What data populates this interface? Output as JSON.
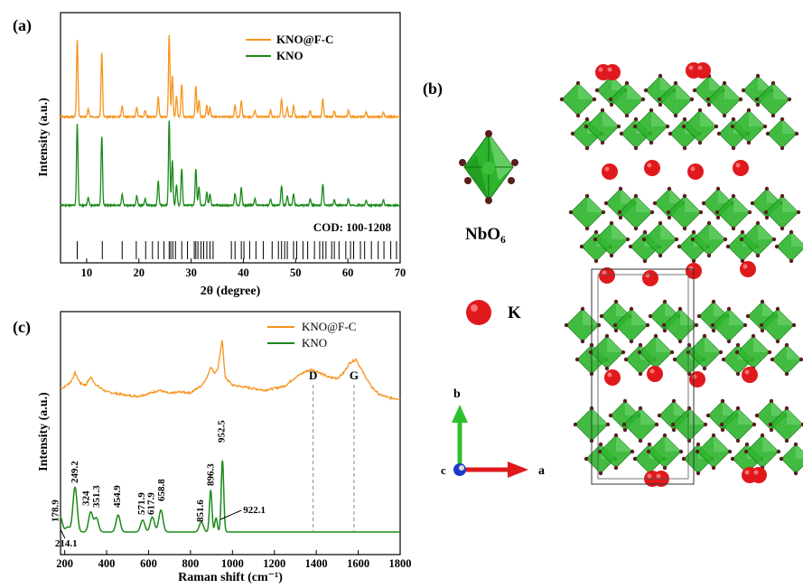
{
  "panel_labels": {
    "a": "(a)",
    "b": "(b)",
    "c": "(c)"
  },
  "colors": {
    "kno_f_c": "#f7941d",
    "kno": "#1a8a1a",
    "sticks": "#000000",
    "nb_green": "#2db52d",
    "oxygen": "#5a1e1e",
    "potassium": "#e0191d"
  },
  "chart_data": [
    {
      "type": "line",
      "panel": "(a)",
      "xlabel": "2θ (degree)",
      "ylabel": "Intensity (a.u.)",
      "xlim": [
        5,
        70
      ],
      "xticks": [
        10,
        20,
        30,
        40,
        50,
        60,
        70
      ],
      "legend_position": "top-right",
      "series": [
        {
          "name": "KNO@F-C",
          "color": "#f7941d",
          "peaks": [
            [
              8.2,
              0.95
            ],
            [
              10.3,
              0.1
            ],
            [
              12.9,
              0.78
            ],
            [
              16.8,
              0.14
            ],
            [
              19.6,
              0.12
            ],
            [
              21.2,
              0.08
            ],
            [
              23.7,
              0.25
            ],
            [
              25.8,
              1.0
            ],
            [
              26.4,
              0.5
            ],
            [
              27.2,
              0.25
            ],
            [
              28.2,
              0.4
            ],
            [
              30.9,
              0.38
            ],
            [
              31.5,
              0.2
            ],
            [
              33.0,
              0.14
            ],
            [
              33.6,
              0.12
            ],
            [
              38.4,
              0.14
            ],
            [
              39.6,
              0.2
            ],
            [
              42.2,
              0.08
            ],
            [
              45.2,
              0.08
            ],
            [
              47.3,
              0.22
            ],
            [
              48.4,
              0.12
            ],
            [
              49.6,
              0.14
            ],
            [
              52.8,
              0.08
            ],
            [
              55.2,
              0.22
            ],
            [
              57.4,
              0.07
            ],
            [
              60.1,
              0.08
            ],
            [
              63.5,
              0.06
            ],
            [
              66.8,
              0.06
            ]
          ]
        },
        {
          "name": "KNO",
          "color": "#1a8a1a",
          "peaks": [
            [
              8.2,
              1.0
            ],
            [
              10.3,
              0.1
            ],
            [
              12.9,
              0.85
            ],
            [
              16.8,
              0.14
            ],
            [
              19.6,
              0.12
            ],
            [
              21.2,
              0.08
            ],
            [
              23.7,
              0.3
            ],
            [
              25.8,
              1.05
            ],
            [
              26.4,
              0.55
            ],
            [
              27.2,
              0.25
            ],
            [
              28.2,
              0.45
            ],
            [
              30.9,
              0.45
            ],
            [
              31.5,
              0.22
            ],
            [
              33.0,
              0.16
            ],
            [
              33.6,
              0.14
            ],
            [
              38.4,
              0.14
            ],
            [
              39.6,
              0.22
            ],
            [
              42.2,
              0.08
            ],
            [
              45.2,
              0.08
            ],
            [
              47.3,
              0.24
            ],
            [
              48.4,
              0.12
            ],
            [
              49.6,
              0.14
            ],
            [
              52.8,
              0.08
            ],
            [
              55.2,
              0.26
            ],
            [
              57.4,
              0.07
            ],
            [
              60.1,
              0.08
            ],
            [
              63.5,
              0.06
            ],
            [
              66.8,
              0.06
            ]
          ]
        }
      ],
      "reference": {
        "label": "COD: 100-1208",
        "positions": [
          8.2,
          13.0,
          16.8,
          19.5,
          21.3,
          22.6,
          23.7,
          24.8,
          25.8,
          26.1,
          26.5,
          27.0,
          28.2,
          29.3,
          30.6,
          30.9,
          31.3,
          31.9,
          32.4,
          33.0,
          33.6,
          34.2,
          37.7,
          38.4,
          39.6,
          40.1,
          41.2,
          42.4,
          43.8,
          45.5,
          46.7,
          47.3,
          47.9,
          48.4,
          49.6,
          50.2,
          51.4,
          52.3,
          53.6,
          54.6,
          55.2,
          55.8,
          56.9,
          57.4,
          58.3,
          59.6,
          60.5,
          61.1,
          62.4,
          63.2,
          64.5,
          65.8,
          66.9,
          68.2,
          69.3
        ]
      }
    },
    {
      "type": "line",
      "panel": "(c)",
      "xlabel": "Raman shift (cm⁻¹)",
      "ylabel": "Intensity (a.u.)",
      "xlim": [
        180,
        1800
      ],
      "xticks": [
        200,
        400,
        600,
        800,
        1000,
        1200,
        1400,
        1600,
        1800
      ],
      "legend_position": "top-right",
      "series": [
        {
          "name": "KNO@F-C",
          "color": "#f7941d",
          "points": [
            [
              180,
              0.42
            ],
            [
              200,
              0.44
            ],
            [
              230,
              0.5
            ],
            [
              249,
              0.6
            ],
            [
              275,
              0.48
            ],
            [
              300,
              0.46
            ],
            [
              324,
              0.55
            ],
            [
              350,
              0.46
            ],
            [
              400,
              0.38
            ],
            [
              450,
              0.36
            ],
            [
              500,
              0.34
            ],
            [
              550,
              0.33
            ],
            [
              600,
              0.36
            ],
            [
              650,
              0.4
            ],
            [
              700,
              0.36
            ],
            [
              750,
              0.38
            ],
            [
              800,
              0.37
            ],
            [
              850,
              0.45
            ],
            [
              880,
              0.55
            ],
            [
              896,
              0.68
            ],
            [
              915,
              0.6
            ],
            [
              930,
              0.65
            ],
            [
              940,
              0.8
            ],
            [
              952,
              1.0
            ],
            [
              965,
              0.55
            ],
            [
              1000,
              0.46
            ],
            [
              1050,
              0.44
            ],
            [
              1100,
              0.42
            ],
            [
              1150,
              0.4
            ],
            [
              1200,
              0.42
            ],
            [
              1250,
              0.45
            ],
            [
              1300,
              0.55
            ],
            [
              1350,
              0.62
            ],
            [
              1380,
              0.64
            ],
            [
              1420,
              0.6
            ],
            [
              1460,
              0.55
            ],
            [
              1500,
              0.54
            ],
            [
              1530,
              0.6
            ],
            [
              1560,
              0.72
            ],
            [
              1590,
              0.76
            ],
            [
              1620,
              0.62
            ],
            [
              1660,
              0.45
            ],
            [
              1700,
              0.35
            ],
            [
              1750,
              0.31
            ],
            [
              1800,
              0.3
            ]
          ]
        },
        {
          "name": "KNO",
          "color": "#1a8a1a",
          "peaks": [
            [
              178.9,
              0.15
            ],
            [
              214.1,
              0.05
            ],
            [
              249.2,
              0.45
            ],
            [
              324,
              0.2
            ],
            [
              351.3,
              0.14
            ],
            [
              454.9,
              0.17
            ],
            [
              571.9,
              0.12
            ],
            [
              617.9,
              0.15
            ],
            [
              658.8,
              0.22
            ],
            [
              851.6,
              0.1
            ],
            [
              896.3,
              0.42
            ],
            [
              922.1,
              0.14
            ],
            [
              952.5,
              0.72
            ]
          ]
        }
      ],
      "markers": [
        {
          "label": "D",
          "x": 1385
        },
        {
          "label": "G",
          "x": 1580
        }
      ],
      "peak_labels": [
        "178.9",
        "214.1",
        "249.2",
        "324",
        "351.3",
        "454.9",
        "571.9",
        "617.9",
        "658.8",
        "851.6",
        "896.3",
        "922.1",
        "952.5"
      ]
    }
  ],
  "structure": {
    "unit_label": "NbO₆",
    "k_label": "K",
    "axes": {
      "b": "b",
      "a": "a",
      "c": "c"
    }
  }
}
